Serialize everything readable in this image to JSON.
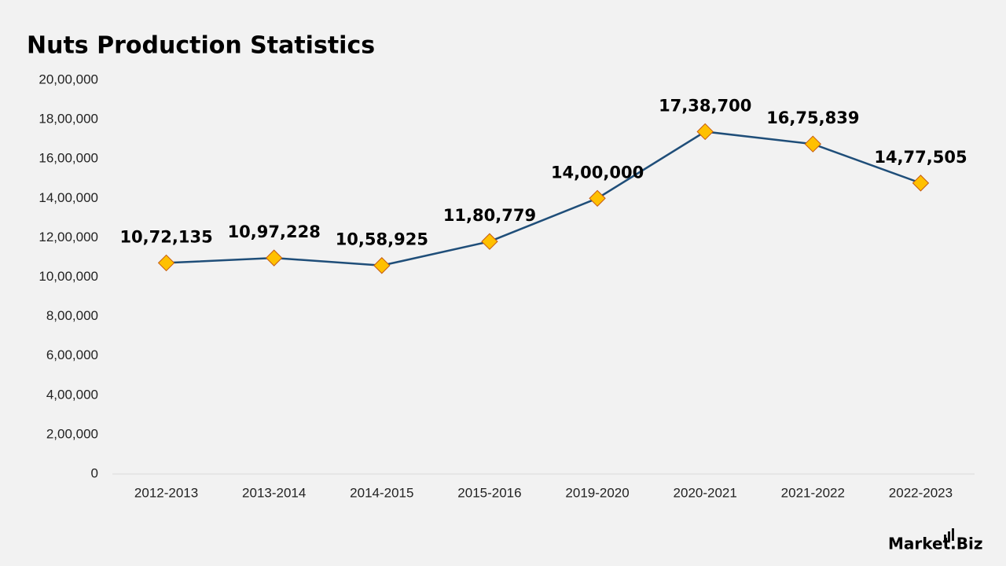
{
  "chart_data": {
    "type": "line",
    "title": "Nuts Production Statistics",
    "categories": [
      "2012-2013",
      "2013-2014",
      "2014-2015",
      "2015-2016",
      "2019-2020",
      "2020-2021",
      "2021-2022",
      "2022-2023"
    ],
    "values": [
      1072135,
      1097228,
      1058925,
      1180779,
      1400000,
      1738700,
      1675839,
      1477505
    ],
    "value_labels": [
      "10,72,135",
      "10,97,228",
      "10,58,925",
      "11,80,779",
      "14,00,000",
      "17,38,700",
      "16,75,839",
      "14,77,505"
    ],
    "color": "#1f4e79",
    "marker_color": "#ffc000",
    "ylim": [
      0,
      2000000
    ],
    "yticks": [
      0,
      {
        "value": 200000,
        "label": "2,00,000"
      },
      {
        "value": 400000,
        "label": "4,00,000"
      },
      {
        "value": 600000,
        "label": "6,00,000"
      },
      {
        "value": 800000,
        "label": "8,00,000"
      },
      {
        "value": 1000000,
        "label": "10,00,000"
      },
      {
        "value": 1200000,
        "label": "12,00,000"
      },
      {
        "value": 1400000,
        "label": "14,00,000"
      },
      {
        "value": 1600000,
        "label": "16,00,000"
      },
      {
        "value": 1800000,
        "label": "18,00,000"
      },
      {
        "value": 2000000,
        "label": "20,00,000"
      }
    ],
    "grid": false,
    "brand": "Market.Biz"
  }
}
